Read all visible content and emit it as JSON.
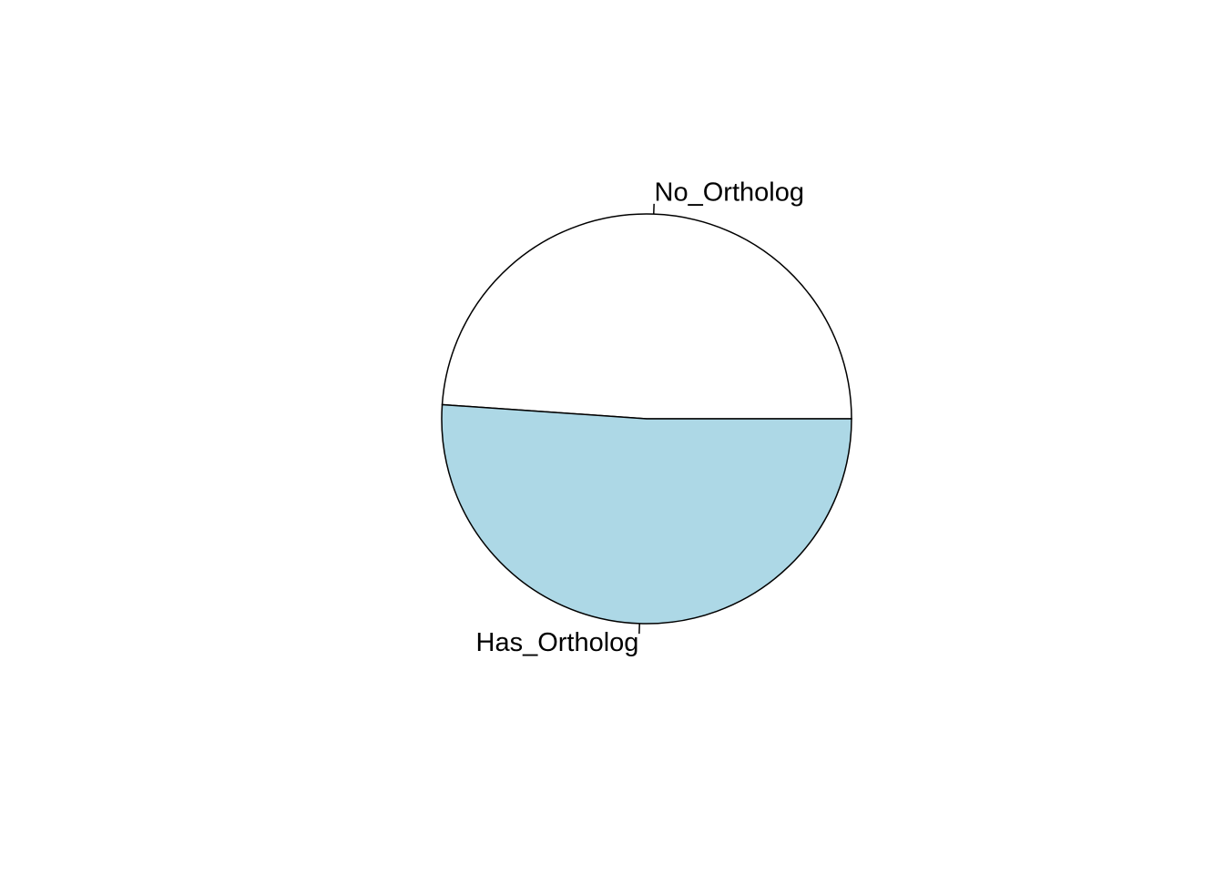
{
  "chart_data": {
    "type": "pie",
    "title": "",
    "slices": [
      {
        "label": "No_Ortholog",
        "value": 48.9,
        "color": "#ffffff"
      },
      {
        "label": "Has_Ortholog",
        "value": 51.1,
        "color": "#add8e6"
      }
    ],
    "start_angle_deg": 0,
    "direction": "counterclockwise",
    "legend": "none"
  }
}
